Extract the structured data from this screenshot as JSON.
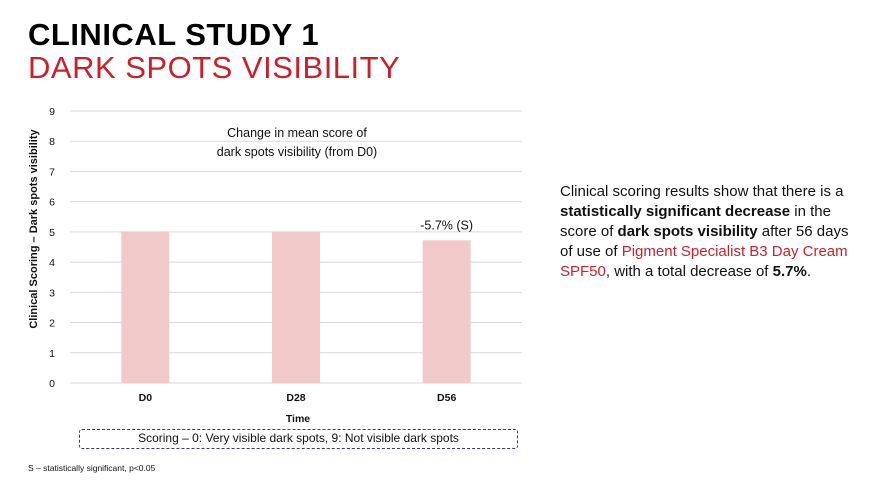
{
  "colors": {
    "accent": "#cc1f2b",
    "bar": "#f2c9c9",
    "grid": "#d9d9d9",
    "box_border": "#3b3a6e"
  },
  "header": {
    "title": "CLINICAL STUDY 1",
    "subtitle": "DARK SPOTS VISIBILITY"
  },
  "chart_data": {
    "type": "bar",
    "title": "Change in mean score of dark spots visibility (from D0)",
    "title_lines": [
      "Change in mean score of",
      "dark spots visibility (from D0)"
    ],
    "xlabel": "Time",
    "ylabel": "Clinical Scoring – Dark spots visibility",
    "categories": [
      "D0",
      "D28",
      "D56"
    ],
    "values": [
      5.0,
      5.0,
      4.72
    ],
    "ylim": [
      0,
      9
    ],
    "yticks": [
      0,
      1,
      2,
      3,
      4,
      5,
      6,
      7,
      8,
      9
    ],
    "grid": true,
    "annotations": [
      {
        "category": "D56",
        "text": "-5.7% (S)"
      }
    ]
  },
  "scoring_note": "Scoring – 0: Very visible dark spots, 9: Not visible dark spots",
  "footnote": "S – statistically significant, p<0.05",
  "description": {
    "t1": "Clinical scoring results show that there is a ",
    "b1": "statistically significant decrease",
    "t2": " in the score of ",
    "b2": "dark spots visibility",
    "t3": " after 56 days of use of ",
    "product": "Pigment Specialist B3 Day Cream SPF50",
    "t4": ", with a total decrease of ",
    "b3": "5.7%",
    "t5": "."
  }
}
